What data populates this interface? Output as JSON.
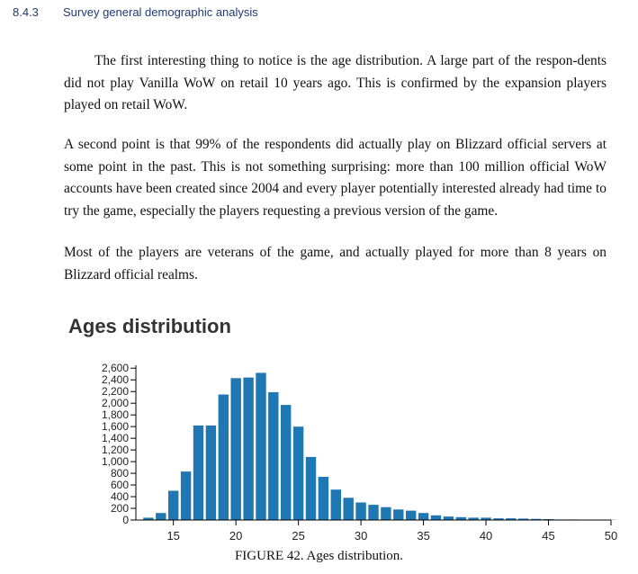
{
  "section": {
    "number": "8.4.3",
    "title": "Survey general demographic analysis"
  },
  "paragraphs": [
    "The first interesting thing to notice is the age distribution. A large part of the respon-dents did not play Vanilla WoW on retail 10 years ago. This is confirmed by the expansion players played on retail WoW.",
    "A second point is that 99% of the respondents did actually play on Blizzard official servers at some point in the past. This is not something surprising: more than 100 million official WoW accounts have been created since 2004 and every player potentially interested already had time to try the game, especially the players requesting a previous version of the game.",
    "Most of the players are veterans of the game, and actually played for more than 8 years on Blizzard official realms."
  ],
  "figure": {
    "caption_label": "FIGURE 42.",
    "caption_text": "Ages distribution."
  },
  "colors": {
    "bar": "#1f77b4",
    "heading": "#1f3a73"
  },
  "chart_data": {
    "type": "bar",
    "title": "Ages distribution",
    "xlabel": "",
    "ylabel": "",
    "x": [
      13,
      14,
      15,
      16,
      17,
      18,
      19,
      20,
      21,
      22,
      23,
      24,
      25,
      26,
      27,
      28,
      29,
      30,
      31,
      32,
      33,
      34,
      35,
      36,
      37,
      38,
      39,
      40,
      41,
      42,
      43,
      44,
      45,
      46,
      47,
      48,
      49,
      50
    ],
    "values": [
      40,
      120,
      500,
      830,
      1620,
      1620,
      2150,
      2430,
      2440,
      2520,
      2190,
      1970,
      1600,
      1080,
      740,
      520,
      380,
      300,
      260,
      220,
      180,
      160,
      120,
      80,
      60,
      50,
      40,
      40,
      30,
      30,
      25,
      20,
      15,
      10,
      10,
      5,
      5,
      5
    ],
    "xticks": [
      15,
      20,
      25,
      30,
      35,
      40,
      45,
      50
    ],
    "yticks": [
      0,
      200,
      400,
      600,
      800,
      1000,
      1200,
      1400,
      1600,
      1800,
      2000,
      2200,
      2400,
      2600
    ],
    "xlim": [
      12,
      50
    ],
    "ylim": [
      0,
      2650
    ],
    "grid": false
  }
}
